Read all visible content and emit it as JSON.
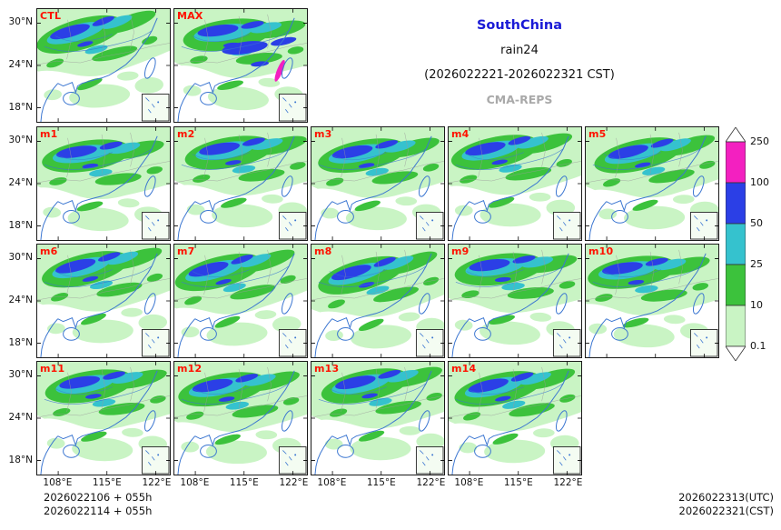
{
  "header": {
    "region": "SouthChina",
    "variable": "rain24",
    "valid_period": "(2026022221-2026022321 CST)",
    "model": "CMA-REPS"
  },
  "panels": [
    {
      "label": "CTL"
    },
    {
      "label": "MAX"
    },
    {
      "label": "m1"
    },
    {
      "label": "m2"
    },
    {
      "label": "m3"
    },
    {
      "label": "m4"
    },
    {
      "label": "m5"
    },
    {
      "label": "m6"
    },
    {
      "label": "m7"
    },
    {
      "label": "m8"
    },
    {
      "label": "m9"
    },
    {
      "label": "m10"
    },
    {
      "label": "m11"
    },
    {
      "label": "m12"
    },
    {
      "label": "m13"
    },
    {
      "label": "m14"
    }
  ],
  "axes": {
    "lat_ticks": [
      "30°N",
      "24°N",
      "18°N"
    ],
    "lon_ticks": [
      "108°E",
      "115°E",
      "122°E"
    ]
  },
  "colorbar": {
    "unit_labels": [
      "250",
      "100",
      "50",
      "25",
      "10",
      "0.1"
    ],
    "colors": [
      "#F320C0",
      "#2B3FE6",
      "#35C2CE",
      "#3CC23C",
      "#C9F4C4",
      "#FFFFFF"
    ]
  },
  "footer": {
    "init_lines": [
      "2026022106 + 055h",
      "2026022114 + 055h"
    ],
    "valid_lines": [
      "2026022313(UTC)",
      "2026022321(CST)"
    ]
  },
  "colors": {
    "title_text": "#1A1AD6",
    "model_text": "#A9A9A9",
    "panel_label": "#FF1200"
  }
}
